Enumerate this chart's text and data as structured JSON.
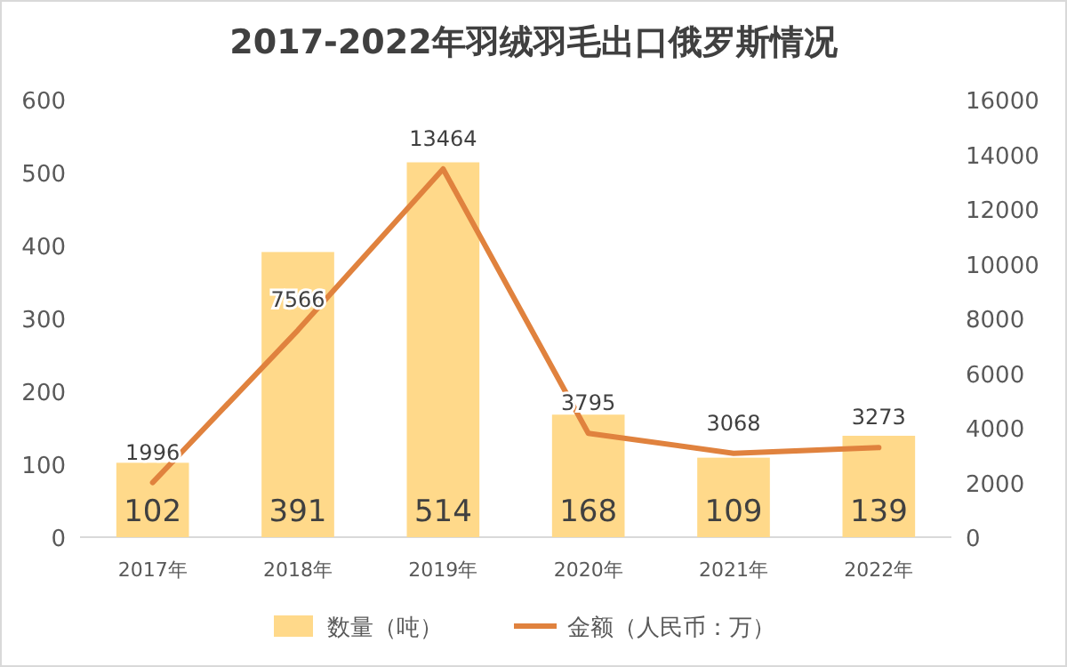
{
  "chart_data": {
    "type": "bar",
    "title": "2017-2022年羽绒羽毛出口俄罗斯情况",
    "categories": [
      "2017年",
      "2018年",
      "2019年",
      "2020年",
      "2021年",
      "2022年"
    ],
    "series": [
      {
        "name": "数量（吨）",
        "color": "#ffd98a",
        "values": [
          102,
          391,
          514,
          168,
          109,
          139
        ]
      },
      {
        "name": "金额（人民币：万）",
        "type": "line",
        "axis": "y2",
        "color": "#e0823e",
        "values": [
          1996,
          7566,
          13464,
          3795,
          3068,
          3273
        ]
      }
    ],
    "ylim": [
      0,
      600
    ],
    "yticks": [
      0,
      100,
      200,
      300,
      400,
      500,
      600
    ],
    "y2lim": [
      0,
      16000
    ],
    "y2ticks": [
      0,
      2000,
      4000,
      6000,
      8000,
      10000,
      12000,
      14000,
      16000
    ],
    "data_labels": true,
    "legend": "bottom",
    "grid": false,
    "marker": "none",
    "line_style": "solid"
  }
}
